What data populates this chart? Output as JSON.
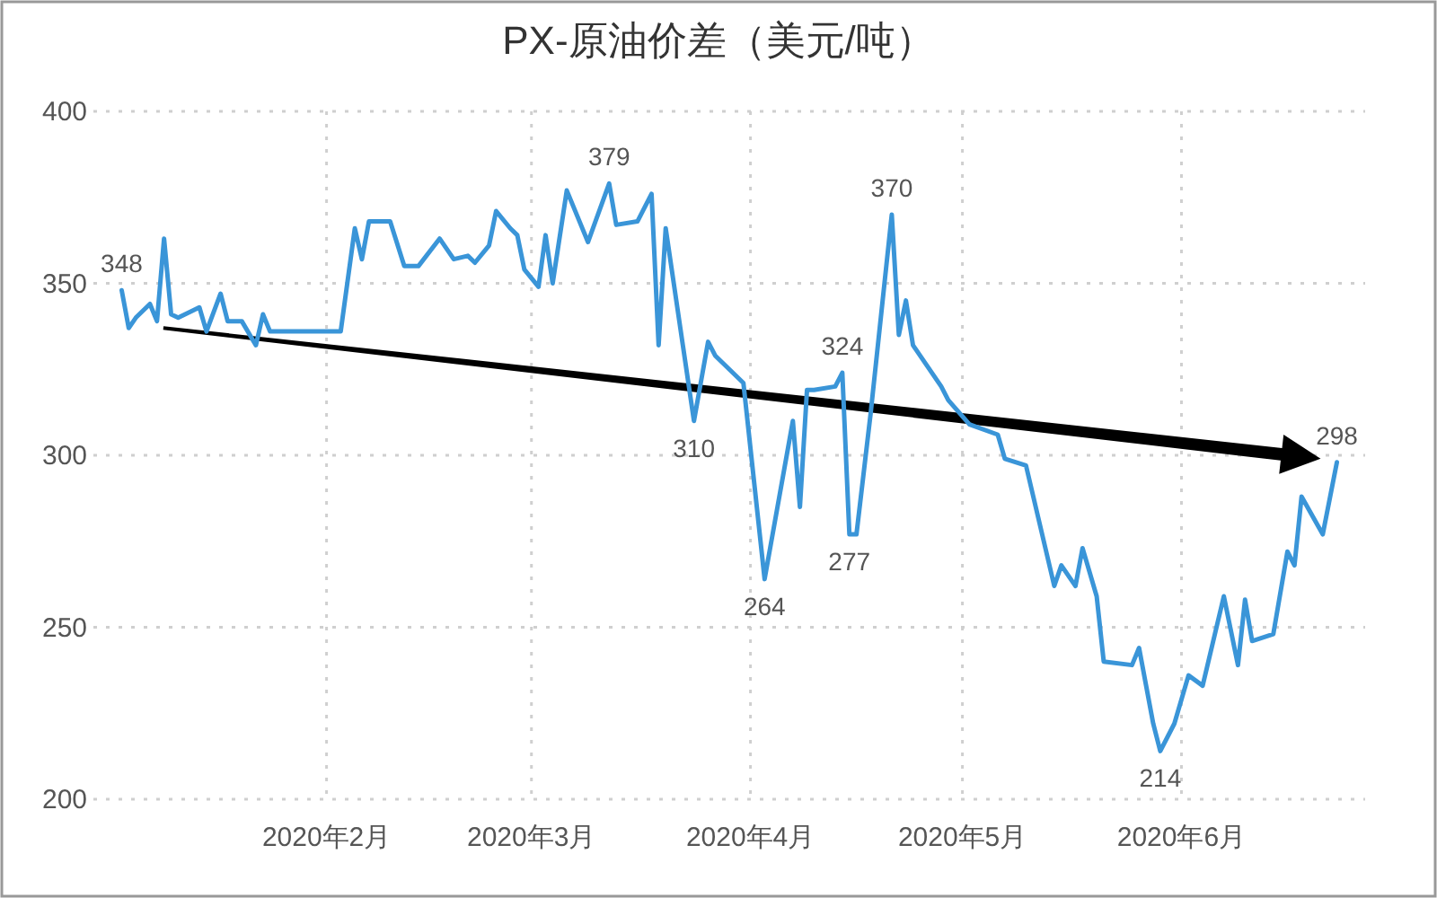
{
  "chart_data": {
    "type": "line",
    "title": "PX-原油价差（美元/吨）",
    "x": [
      "2020-01-03",
      "2020-01-04",
      "2020-01-05",
      "2020-01-07",
      "2020-01-08",
      "2020-01-09",
      "2020-01-10",
      "2020-01-11",
      "2020-01-14",
      "2020-01-15",
      "2020-01-17",
      "2020-01-18",
      "2020-01-20",
      "2020-01-22",
      "2020-01-23",
      "2020-01-24",
      "2020-02-03",
      "2020-02-05",
      "2020-02-06",
      "2020-02-07",
      "2020-02-10",
      "2020-02-12",
      "2020-02-14",
      "2020-02-17",
      "2020-02-19",
      "2020-02-21",
      "2020-02-22",
      "2020-02-24",
      "2020-02-25",
      "2020-02-27",
      "2020-02-28",
      "2020-02-29",
      "2020-03-02",
      "2020-03-03",
      "2020-03-04",
      "2020-03-06",
      "2020-03-09",
      "2020-03-12",
      "2020-03-13",
      "2020-03-16",
      "2020-03-18",
      "2020-03-19",
      "2020-03-20",
      "2020-03-24",
      "2020-03-26",
      "2020-03-27",
      "2020-03-31",
      "2020-04-03",
      "2020-04-07",
      "2020-04-08",
      "2020-04-09",
      "2020-04-10",
      "2020-04-13",
      "2020-04-14",
      "2020-04-15",
      "2020-04-16",
      "2020-04-18",
      "2020-04-21",
      "2020-04-22",
      "2020-04-23",
      "2020-04-24",
      "2020-04-28",
      "2020-04-29",
      "2020-05-02",
      "2020-05-06",
      "2020-05-07",
      "2020-05-10",
      "2020-05-14",
      "2020-05-15",
      "2020-05-17",
      "2020-05-18",
      "2020-05-20",
      "2020-05-21",
      "2020-05-25",
      "2020-05-26",
      "2020-05-28",
      "2020-05-29",
      "2020-05-31",
      "2020-06-02",
      "2020-06-04",
      "2020-06-07",
      "2020-06-09",
      "2020-06-10",
      "2020-06-11",
      "2020-06-14",
      "2020-06-16",
      "2020-06-17",
      "2020-06-18",
      "2020-06-21",
      "2020-06-23"
    ],
    "series": [
      {
        "color": "#3a95d8",
        "values": [
          348,
          337,
          340,
          344,
          339,
          363,
          341,
          340,
          343,
          336,
          347,
          339,
          339,
          332,
          341,
          336,
          336,
          366,
          357,
          368,
          368,
          355,
          355,
          363,
          357,
          358,
          356,
          361,
          371,
          366,
          364,
          354,
          349,
          364,
          350,
          377,
          362,
          379,
          367,
          368,
          376,
          332,
          366,
          310,
          333,
          329,
          321,
          264,
          310,
          285,
          319,
          319,
          320,
          324,
          277,
          277,
          312,
          370,
          335,
          345,
          332,
          320,
          316,
          309,
          306,
          299,
          297,
          262,
          268,
          262,
          273,
          259,
          240,
          239,
          244,
          222,
          214,
          222,
          236,
          233,
          259,
          239,
          258,
          246,
          248,
          272,
          268,
          288,
          277,
          298
        ],
        "value_labels": [
          "348",
          null,
          null,
          null,
          null,
          null,
          null,
          null,
          null,
          null,
          null,
          null,
          null,
          null,
          null,
          null,
          null,
          null,
          null,
          null,
          null,
          null,
          null,
          null,
          null,
          null,
          null,
          null,
          null,
          null,
          null,
          null,
          null,
          null,
          null,
          null,
          null,
          "379",
          null,
          null,
          null,
          null,
          null,
          "310",
          null,
          null,
          null,
          "264",
          null,
          null,
          null,
          null,
          null,
          "324",
          "277",
          null,
          null,
          "370",
          null,
          null,
          null,
          null,
          null,
          null,
          null,
          null,
          null,
          null,
          null,
          null,
          null,
          null,
          null,
          null,
          null,
          null,
          "214",
          null,
          null,
          null,
          null,
          null,
          null,
          null,
          null,
          null,
          null,
          null,
          null,
          "298"
        ]
      }
    ],
    "xlim": [
      "2019-12-30",
      "2020-06-27"
    ],
    "xticks": [
      {
        "value": "2020-02-01",
        "label": "2020年2月"
      },
      {
        "value": "2020-03-01",
        "label": "2020年3月"
      },
      {
        "value": "2020-04-01",
        "label": "2020年4月"
      },
      {
        "value": "2020-05-01",
        "label": "2020年5月"
      },
      {
        "value": "2020-06-01",
        "label": "2020年6月"
      }
    ],
    "ylim": [
      200,
      400
    ],
    "yticks": [
      200,
      250,
      300,
      350,
      400
    ],
    "grid": true
  }
}
